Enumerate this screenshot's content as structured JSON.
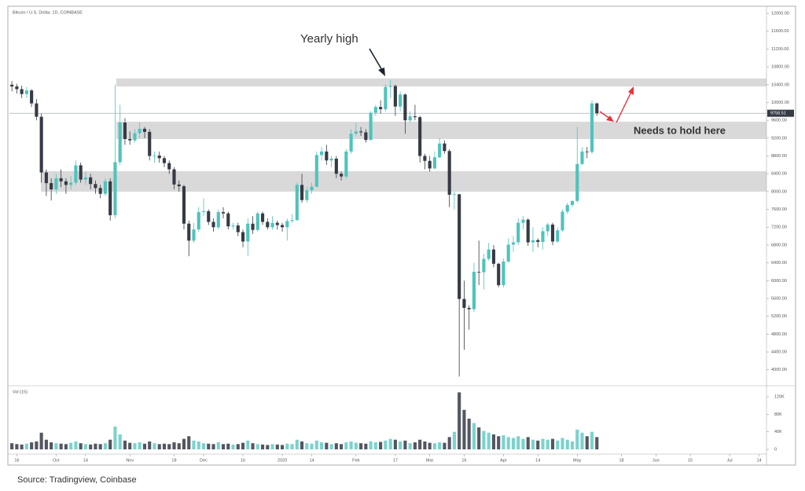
{
  "chart_data": {
    "type": "candlestick",
    "title": "Bitcoin / U.S. Dollar, 1D, COINBASE",
    "volume_title": "Vol (15)",
    "source": "Source: Tradingview, Coinbase",
    "annotations": [
      "Yearly high",
      "Needs to hold here"
    ],
    "last_price": {
      "value": 9758.51,
      "label": "9758.51"
    },
    "up_color": "#4fc3bd",
    "down_color": "#363a45",
    "zone_color": "#d9d9d9",
    "zones": [
      {
        "low": 10360,
        "high": 10540
      },
      {
        "low": 9180,
        "high": 9570
      },
      {
        "low": 8000,
        "high": 8460
      }
    ],
    "categories": [
      null,
      "16",
      null,
      null,
      null,
      null,
      null,
      null,
      null,
      "Oct",
      null,
      null,
      null,
      null,
      null,
      "14",
      null,
      null,
      null,
      null,
      null,
      null,
      null,
      null,
      "Nov",
      null,
      null,
      null,
      null,
      null,
      null,
      null,
      null,
      "18",
      null,
      null,
      null,
      null,
      null,
      "Dec",
      null,
      null,
      null,
      null,
      null,
      null,
      null,
      "16",
      null,
      null,
      null,
      null,
      null,
      null,
      null,
      "2020",
      null,
      null,
      null,
      null,
      null,
      "14",
      null,
      null,
      null,
      null,
      null,
      null,
      null,
      null,
      "Feb",
      null,
      null,
      null,
      null,
      null,
      null,
      null,
      "17",
      null,
      null,
      null,
      null,
      null,
      null,
      "Mar",
      null,
      null,
      null,
      null,
      null,
      null,
      "16",
      null,
      null,
      null,
      null,
      null,
      null,
      null,
      "Apr",
      null,
      null,
      null,
      null,
      null,
      null,
      "14",
      null,
      null,
      null,
      null,
      null,
      null,
      null,
      "May",
      null,
      null,
      null,
      null,
      null,
      null,
      null,
      null,
      "18",
      null,
      null,
      null,
      null,
      null,
      null,
      "Jun",
      null,
      null,
      null,
      null,
      null,
      null,
      "15",
      null,
      null,
      null,
      null,
      null,
      null,
      null,
      "Jul",
      null,
      null,
      null,
      null,
      null,
      "14",
      null
    ],
    "open": [
      10400,
      10360,
      10300,
      10190,
      10270,
      9980,
      9680,
      8430,
      8190,
      8050,
      8300,
      8230,
      8150,
      8200,
      8590,
      8270,
      8320,
      8170,
      8080,
      7950,
      8230,
      7470,
      8660,
      9550,
      9180,
      9150,
      9310,
      9410,
      9340,
      8800,
      8810,
      8750,
      8640,
      8500,
      8160,
      8120,
      7280,
      6900,
      7150,
      7540,
      7560,
      7320,
      7200,
      7540,
      7510,
      7220,
      7240,
      7090,
      6880,
      7280,
      7140,
      7510,
      7320,
      7200,
      7300,
      7250,
      7200,
      7340,
      7360,
      8150,
      7810,
      8030,
      8110,
      8820,
      8900,
      8700,
      8740,
      8400,
      8340,
      8900,
      9300,
      9350,
      9330,
      9160,
      9770,
      9900,
      9850,
      10350,
      10370,
      9910,
      10180,
      9600,
      9690,
      9670,
      8800,
      8690,
      8520,
      8770,
      9080,
      8910,
      7930,
      7940,
      5590,
      5390,
      5360,
      6200,
      6190,
      6490,
      6700,
      6380,
      5900,
      6430,
      6810,
      6860,
      7300,
      7370,
      6860,
      6910,
      6870,
      7110,
      7260,
      6880,
      7130,
      7550,
      7700,
      7790,
      8620,
      8900,
      8890,
      9980,
      null,
      null,
      null,
      null,
      null,
      null,
      null,
      null,
      null,
      null,
      null,
      null,
      null,
      null,
      null,
      null,
      null,
      null,
      null,
      null,
      null,
      null,
      null,
      null,
      null,
      null,
      null,
      null,
      null,
      null,
      null,
      null,
      null,
      null
    ],
    "high": [
      10480,
      10420,
      10380,
      10350,
      10300,
      10080,
      9750,
      8500,
      8300,
      8400,
      8500,
      8300,
      8350,
      8700,
      8650,
      8450,
      8400,
      8250,
      8150,
      8300,
      8300,
      10400,
      9950,
      9650,
      9350,
      9400,
      9550,
      9450,
      9400,
      8900,
      8900,
      8800,
      8700,
      8550,
      8250,
      8150,
      7350,
      7300,
      7650,
      7850,
      7600,
      7400,
      7600,
      7650,
      7550,
      7300,
      7300,
      7150,
      7400,
      7450,
      7550,
      7550,
      7400,
      7450,
      7350,
      7300,
      7400,
      7500,
      8200,
      8400,
      8100,
      8200,
      8900,
      9000,
      9050,
      8800,
      8800,
      8450,
      8950,
      9400,
      9550,
      9450,
      9400,
      9800,
      9950,
      10050,
      10400,
      10500,
      10400,
      10250,
      10200,
      9800,
      9950,
      9700,
      8850,
      8800,
      8900,
      9200,
      9150,
      8950,
      8000,
      7950,
      6000,
      5450,
      6400,
      6900,
      6600,
      6850,
      6800,
      6400,
      6500,
      6950,
      7000,
      7400,
      7450,
      7400,
      7200,
      6950,
      7200,
      7300,
      7300,
      7200,
      7600,
      7750,
      7800,
      9450,
      9000,
      9000,
      10050,
      10000,
      null,
      null,
      null,
      null,
      null,
      null,
      null,
      null,
      null,
      null,
      null,
      null,
      null,
      null,
      null,
      null,
      null,
      null,
      null,
      null,
      null,
      null,
      null,
      null,
      null,
      null,
      null,
      null,
      null,
      null,
      null,
      null,
      null,
      null
    ],
    "low": [
      10250,
      10200,
      10100,
      10100,
      9900,
      9600,
      8200,
      7900,
      7800,
      7950,
      8100,
      7950,
      8050,
      8150,
      8200,
      8150,
      8050,
      7950,
      7850,
      7900,
      7350,
      7400,
      8600,
      9050,
      9050,
      9100,
      9200,
      9200,
      8700,
      8650,
      8650,
      8550,
      8400,
      8050,
      8000,
      7150,
      6550,
      6850,
      7100,
      7450,
      7250,
      7100,
      7150,
      7400,
      7150,
      7150,
      7000,
      6750,
      6550,
      7050,
      7100,
      7250,
      7150,
      7150,
      7150,
      7100,
      6900,
      7300,
      7350,
      7750,
      7750,
      7950,
      8100,
      8700,
      8600,
      8550,
      8300,
      8250,
      8300,
      8850,
      9250,
      9250,
      9100,
      9150,
      9700,
      9750,
      9800,
      10100,
      9700,
      9800,
      9300,
      9550,
      9600,
      8650,
      8500,
      8450,
      8500,
      8750,
      8850,
      7650,
      7600,
      3850,
      4450,
      4900,
      5300,
      5900,
      5800,
      6450,
      6300,
      5850,
      5850,
      6400,
      6650,
      6800,
      7150,
      6780,
      6650,
      6750,
      6700,
      7000,
      6800,
      6850,
      7100,
      7500,
      7650,
      7750,
      8600,
      8750,
      8850,
      9700,
      null,
      null,
      null,
      null,
      null,
      null,
      null,
      null,
      null,
      null,
      null,
      null,
      null,
      null,
      null,
      null,
      null,
      null,
      null,
      null,
      null,
      null,
      null,
      null,
      null,
      null,
      null,
      null,
      null,
      null,
      null,
      null,
      null,
      null
    ],
    "close": [
      10360,
      10300,
      10190,
      10270,
      9980,
      9680,
      8430,
      8190,
      8050,
      8300,
      8230,
      8150,
      8200,
      8590,
      8270,
      8320,
      8170,
      8080,
      7950,
      8230,
      7470,
      8660,
      9550,
      9180,
      9150,
      9310,
      9410,
      9340,
      8800,
      8810,
      8750,
      8640,
      8500,
      8160,
      8120,
      7280,
      6900,
      7150,
      7540,
      7560,
      7320,
      7200,
      7540,
      7510,
      7220,
      7240,
      7090,
      6880,
      7280,
      7140,
      7510,
      7320,
      7200,
      7300,
      7250,
      7200,
      7340,
      7360,
      8150,
      7810,
      8030,
      8110,
      8820,
      8900,
      8700,
      8740,
      8400,
      8340,
      8900,
      9300,
      9350,
      9330,
      9160,
      9770,
      9900,
      9850,
      10350,
      10370,
      9910,
      10180,
      9600,
      9690,
      9670,
      8800,
      8690,
      8520,
      8770,
      9080,
      8910,
      7930,
      7940,
      5590,
      5390,
      5360,
      6200,
      6190,
      6490,
      6700,
      6380,
      5900,
      6430,
      6810,
      6860,
      7300,
      7370,
      6860,
      6910,
      6870,
      7110,
      7260,
      6880,
      7130,
      7550,
      7700,
      7790,
      8620,
      8900,
      8890,
      9980,
      9758,
      null,
      null,
      null,
      null,
      null,
      null,
      null,
      null,
      null,
      null,
      null,
      null,
      null,
      null,
      null,
      null,
      null,
      null,
      null,
      null,
      null,
      null,
      null,
      null,
      null,
      null,
      null,
      null,
      null,
      null,
      null,
      null,
      null,
      null
    ],
    "volume": [
      14000,
      12000,
      11000,
      13000,
      16000,
      18000,
      38000,
      22000,
      16000,
      14000,
      13000,
      12000,
      15000,
      18000,
      14000,
      12000,
      11000,
      13000,
      12000,
      14000,
      22000,
      52000,
      34000,
      20000,
      15000,
      14000,
      16000,
      13000,
      18000,
      14000,
      12000,
      13000,
      12000,
      16000,
      14000,
      24000,
      30000,
      20000,
      18000,
      14000,
      13000,
      12000,
      16000,
      12000,
      13000,
      11000,
      12000,
      15000,
      20000,
      14000,
      12000,
      11000,
      10000,
      12000,
      11000,
      10000,
      13000,
      12000,
      22000,
      18000,
      14000,
      13000,
      20000,
      16000,
      15000,
      12000,
      14000,
      12000,
      16000,
      18000,
      15000,
      14000,
      13000,
      18000,
      16000,
      17000,
      20000,
      24000,
      22000,
      18000,
      20000,
      14000,
      16000,
      22000,
      18000,
      15000,
      14000,
      16000,
      15000,
      28000,
      40000,
      130000,
      90000,
      70000,
      60000,
      50000,
      42000,
      38000,
      34000,
      30000,
      32000,
      28000,
      26000,
      30000,
      24000,
      28000,
      22000,
      20000,
      24000,
      22000,
      24000,
      20000,
      26000,
      22000,
      18000,
      45000,
      38000,
      30000,
      40000,
      28000,
      null,
      null,
      null,
      null,
      null,
      null,
      null,
      null,
      null,
      null,
      null,
      null,
      null,
      null,
      null,
      null,
      null,
      null,
      null,
      null,
      null,
      null,
      null,
      null,
      null,
      null,
      null,
      null,
      null,
      null,
      null,
      null,
      null,
      null
    ],
    "ylim": [
      3660,
      12160
    ],
    "yticks": [
      {
        "value": 4000,
        "label": "4000.00"
      },
      {
        "value": 4400,
        "label": "4400.00"
      },
      {
        "value": 4800,
        "label": "4800.00"
      },
      {
        "value": 5200,
        "label": "5200.00"
      },
      {
        "value": 5600,
        "label": "5600.00"
      },
      {
        "value": 6000,
        "label": "6000.00"
      },
      {
        "value": 6400,
        "label": "6400.00"
      },
      {
        "value": 6800,
        "label": "6800.00"
      },
      {
        "value": 7200,
        "label": "7200.00"
      },
      {
        "value": 7600,
        "label": "7600.00"
      },
      {
        "value": 8000,
        "label": "8000.00"
      },
      {
        "value": 8400,
        "label": "8400.00"
      },
      {
        "value": 8800,
        "label": "8800.00"
      },
      {
        "value": 9200,
        "label": "9200.00"
      },
      {
        "value": 9600,
        "label": "9600.00"
      },
      {
        "value": 10000,
        "label": "10000.00"
      },
      {
        "value": 10400,
        "label": "10400.00"
      },
      {
        "value": 10800,
        "label": "10800.00"
      },
      {
        "value": 11200,
        "label": "11200.00"
      },
      {
        "value": 11600,
        "label": "11600.00"
      },
      {
        "value": 12000,
        "label": "12000.00"
      }
    ],
    "volume_ylim": [
      -10750,
      141500
    ],
    "volume_ticks": [
      0,
      {
        "value": 40000,
        "label": "40K"
      },
      {
        "value": 80000,
        "label": "80K"
      },
      {
        "value": 120000,
        "label": "120K"
      }
    ]
  }
}
